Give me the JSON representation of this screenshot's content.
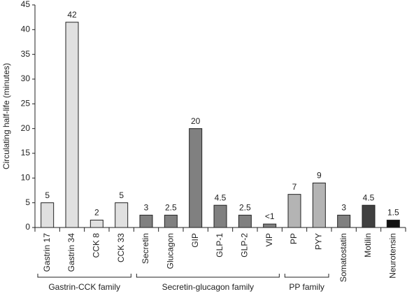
{
  "chart_data": {
    "type": "bar",
    "ylabel": "Circulating half-life (minutes)",
    "categories": [
      "Gastrin 17",
      "Gastrin 34",
      "CCK 8",
      "CCK 33",
      "Secretin",
      "Glucagon",
      "GIP",
      "GLP-1",
      "GLP-2",
      "VIP",
      "PP",
      "PYY",
      "Somatostatin",
      "Motilin",
      "Neurotensin"
    ],
    "values": [
      5,
      41.5,
      1.5,
      5,
      2.5,
      2.5,
      20,
      4.5,
      2.5,
      0.7,
      6.7,
      9,
      2.5,
      4.5,
      1.5
    ],
    "value_labels": [
      "5",
      "42",
      "2",
      "5",
      "3",
      "2.5",
      "20",
      "4.5",
      "2.5",
      "<1",
      "7",
      "9",
      "3",
      "4.5",
      "1.5"
    ],
    "colors": [
      "#e0e0e0",
      "#e0e0e0",
      "#e0e0e0",
      "#e0e0e0",
      "#808080",
      "#808080",
      "#808080",
      "#808080",
      "#808080",
      "#808080",
      "#b4b4b4",
      "#b4b4b4",
      "#808080",
      "#404040",
      "#111111"
    ],
    "groups": [
      {
        "label": "Gastrin-CCK family"
      },
      {
        "label": "Secretin-glucagon family"
      },
      {
        "label": "PP family"
      }
    ],
    "ylim": [
      0,
      45
    ],
    "yticks": [
      0,
      5,
      10,
      15,
      20,
      25,
      30,
      35,
      40,
      45
    ]
  }
}
